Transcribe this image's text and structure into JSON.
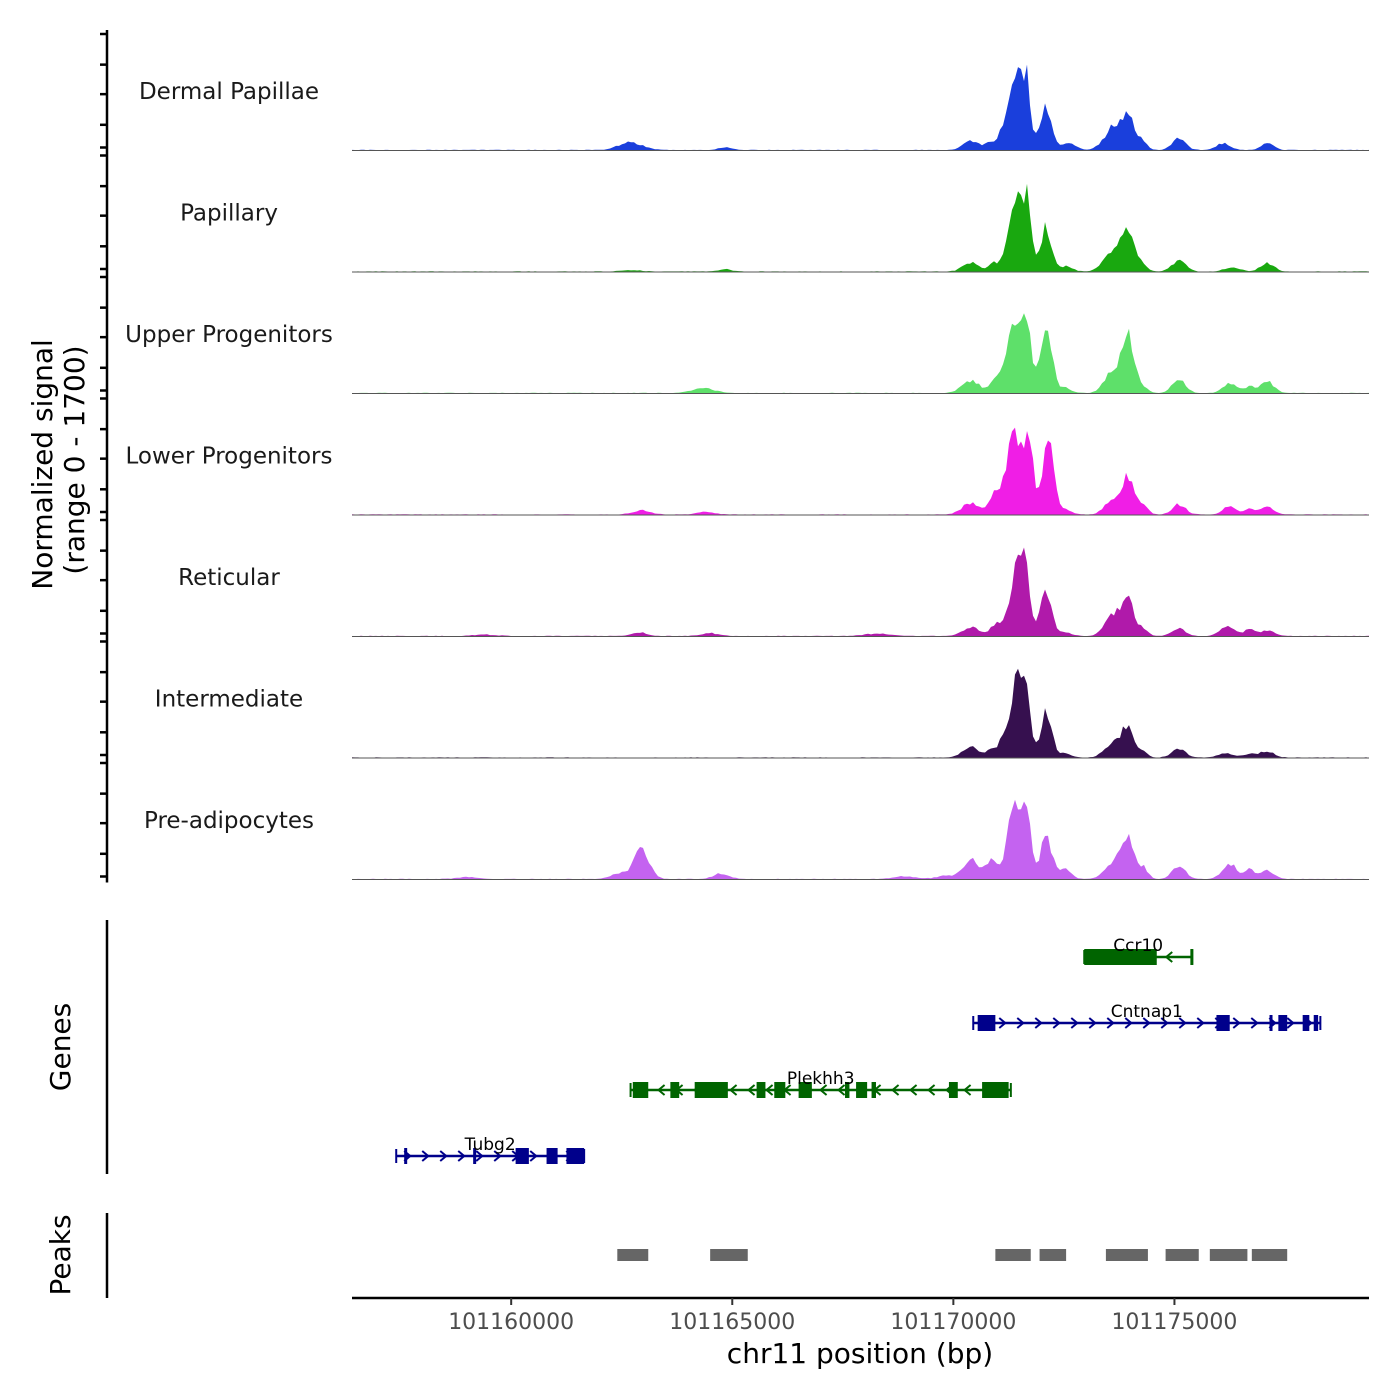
{
  "chart_data": {
    "type": "area",
    "chromosome": "chr11",
    "xlabel": "chr11 position (bp)",
    "xlim": [
      101156400,
      101179400
    ],
    "x_ticks": [
      101160000,
      101165000,
      101170000,
      101175000
    ],
    "x_tick_labels": [
      "101160000",
      "101165000",
      "101170000",
      "101175000"
    ],
    "coverage": {
      "ylabel_line1": "Normalized signal",
      "ylabel_line2": "(range 0 - 1700)",
      "ylim": [
        0,
        1700
      ],
      "series": [
        {
          "name": "Dermal Papillae",
          "color": "#1a3fdc",
          "peaks": [
            [
              101162700,
              170,
              260
            ],
            [
              101164850,
              60,
              150
            ],
            [
              101170400,
              200,
              180
            ],
            [
              101170850,
              160,
              120
            ],
            [
              101171100,
              220,
              100
            ],
            [
              101171450,
              1500,
              190
            ],
            [
              101171600,
              1100,
              110
            ],
            [
              101172100,
              950,
              120
            ],
            [
              101172600,
              150,
              160
            ],
            [
              101173600,
              450,
              200
            ],
            [
              101173950,
              700,
              160
            ],
            [
              101174300,
              160,
              100
            ],
            [
              101175100,
              260,
              150
            ],
            [
              101176100,
              140,
              160
            ],
            [
              101177100,
              150,
              140
            ]
          ]
        },
        {
          "name": "Papillary",
          "color": "#19a80f",
          "peaks": [
            [
              101170400,
              200,
              180
            ],
            [
              101170900,
              160,
              110
            ],
            [
              101171450,
              1700,
              190
            ],
            [
              101171600,
              1200,
              110
            ],
            [
              101172100,
              950,
              120
            ],
            [
              101172550,
              110,
              140
            ],
            [
              101173600,
              400,
              200
            ],
            [
              101173950,
              800,
              160
            ],
            [
              101174300,
              100,
              100
            ],
            [
              101175100,
              230,
              160
            ],
            [
              101176300,
              90,
              180
            ],
            [
              101177100,
              180,
              150
            ],
            [
              101164850,
              50,
              140
            ],
            [
              101162700,
              30,
              200
            ]
          ]
        },
        {
          "name": "Upper Progenitors",
          "color": "#5ee06a",
          "peaks": [
            [
              101164350,
              110,
              250
            ],
            [
              101170400,
              270,
              200
            ],
            [
              101170950,
              250,
              120
            ],
            [
              101171450,
              2100,
              190
            ],
            [
              101171600,
              1500,
              110
            ],
            [
              101172100,
              1600,
              120
            ],
            [
              101172500,
              120,
              150
            ],
            [
              101173600,
              450,
              180
            ],
            [
              101173950,
              1200,
              140
            ],
            [
              101174300,
              130,
              100
            ],
            [
              101175100,
              280,
              150
            ],
            [
              101176250,
              220,
              150
            ],
            [
              101176700,
              140,
              120
            ],
            [
              101177100,
              250,
              150
            ]
          ]
        },
        {
          "name": "Lower Progenitors",
          "color": "#f01ee6",
          "peaks": [
            [
              101162950,
              90,
              200
            ],
            [
              101164400,
              60,
              200
            ],
            [
              101170400,
              250,
              200
            ],
            [
              101170950,
              450,
              120
            ],
            [
              101171450,
              2200,
              200
            ],
            [
              101171650,
              1400,
              120
            ],
            [
              101172150,
              1600,
              120
            ],
            [
              101172500,
              120,
              150
            ],
            [
              101173600,
              300,
              180
            ],
            [
              101173950,
              800,
              140
            ],
            [
              101174300,
              230,
              100
            ],
            [
              101175100,
              220,
              150
            ],
            [
              101176250,
              200,
              140
            ],
            [
              101176700,
              120,
              120
            ],
            [
              101177100,
              160,
              150
            ]
          ]
        },
        {
          "name": "Reticular",
          "color": "#b01aaa",
          "peaks": [
            [
              101162900,
              80,
              160
            ],
            [
              101164500,
              60,
              200
            ],
            [
              101168300,
              50,
              300
            ],
            [
              101170400,
              200,
              180
            ],
            [
              101170950,
              240,
              120
            ],
            [
              101171450,
              1300,
              190
            ],
            [
              101171600,
              950,
              110
            ],
            [
              101172100,
              1000,
              120
            ],
            [
              101172500,
              90,
              150
            ],
            [
              101173600,
              450,
              180
            ],
            [
              101173950,
              780,
              140
            ],
            [
              101174300,
              150,
              100
            ],
            [
              101175100,
              170,
              150
            ],
            [
              101176200,
              230,
              160
            ],
            [
              101176700,
              150,
              120
            ],
            [
              101177100,
              120,
              150
            ],
            [
              101159400,
              30,
              250
            ]
          ]
        },
        {
          "name": "Intermediate",
          "color": "#36104f",
          "peaks": [
            [
              101170400,
              230,
              180
            ],
            [
              101170850,
              160,
              110
            ],
            [
              101171100,
              200,
              100
            ],
            [
              101171450,
              1550,
              180
            ],
            [
              101171600,
              1100,
              110
            ],
            [
              101172100,
              1000,
              120
            ],
            [
              101172500,
              90,
              150
            ],
            [
              101173600,
              320,
              180
            ],
            [
              101173950,
              680,
              140
            ],
            [
              101174300,
              110,
              100
            ],
            [
              101175100,
              190,
              150
            ],
            [
              101176150,
              100,
              160
            ],
            [
              101176700,
              80,
              140
            ],
            [
              101177100,
              140,
              150
            ]
          ]
        },
        {
          "name": "Pre-adipocytes",
          "color": "#c463f0",
          "peaks": [
            [
              101162450,
              120,
              200
            ],
            [
              101162950,
              650,
              170
            ],
            [
              101164750,
              120,
              180
            ],
            [
              101168900,
              60,
              250
            ],
            [
              101169800,
              70,
              200
            ],
            [
              101170400,
              450,
              180
            ],
            [
              101170850,
              380,
              120
            ],
            [
              101171450,
              1900,
              190
            ],
            [
              101171600,
              1400,
              110
            ],
            [
              101172100,
              950,
              120
            ],
            [
              101172500,
              230,
              150
            ],
            [
              101173600,
              350,
              180
            ],
            [
              101173950,
              920,
              140
            ],
            [
              101174300,
              240,
              100
            ],
            [
              101175100,
              270,
              150
            ],
            [
              101176250,
              330,
              160
            ],
            [
              101176700,
              200,
              120
            ],
            [
              101177100,
              180,
              150
            ],
            [
              101159000,
              40,
              250
            ]
          ]
        }
      ]
    },
    "genes_track": {
      "label": "Genes",
      "genes": [
        {
          "name": "Ccr10",
          "strand": "-",
          "row": 0,
          "color": "#006400",
          "start": 101172960,
          "end": 101175400,
          "exons": [
            [
              101172960,
              101174600
            ],
            [
              101175360,
              101175400
            ]
          ]
        },
        {
          "name": "Cntnap1",
          "strand": "+",
          "row": 1,
          "color": "#00008b",
          "start": 101170450,
          "end": 101178300,
          "exons": [
            [
              101170550,
              101170950
            ],
            [
              101175950,
              101176250
            ],
            [
              101177150,
              101177200
            ],
            [
              101177350,
              101177550
            ],
            [
              101177900,
              101178050
            ],
            [
              101178150,
              101178250
            ]
          ]
        },
        {
          "name": "Plekhh3",
          "strand": "-",
          "row": 2,
          "color": "#006400",
          "start": 101162700,
          "end": 101171300,
          "exons": [
            [
              101162750,
              101163100
            ],
            [
              101163600,
              101163800
            ],
            [
              101164150,
              101164900
            ],
            [
              101165550,
              101165750
            ],
            [
              101165950,
              101166200
            ],
            [
              101166500,
              101166800
            ],
            [
              101167550,
              101167650
            ],
            [
              101167800,
              101168050
            ],
            [
              101168150,
              101168250
            ],
            [
              101169900,
              101170100
            ],
            [
              101170650,
              101171250
            ]
          ]
        },
        {
          "name": "Tubg2",
          "strand": "+",
          "row": 3,
          "color": "#00008b",
          "start": 101157400,
          "end": 101161650,
          "exons": [
            [
              101157580,
              101157620
            ],
            [
              101159140,
              101159200
            ],
            [
              101160100,
              101160400
            ],
            [
              101160800,
              101161050
            ],
            [
              101161250,
              101161650
            ]
          ]
        }
      ]
    },
    "peaks_track": {
      "label": "Peaks",
      "color": "#666666",
      "regions": [
        [
          101162400,
          101163100
        ],
        [
          101164500,
          101165350
        ],
        [
          101170950,
          101171750
        ],
        [
          101171950,
          101172550
        ],
        [
          101173450,
          101174400
        ],
        [
          101174800,
          101175550
        ],
        [
          101175800,
          101176650
        ],
        [
          101176750,
          101177550
        ]
      ]
    }
  }
}
